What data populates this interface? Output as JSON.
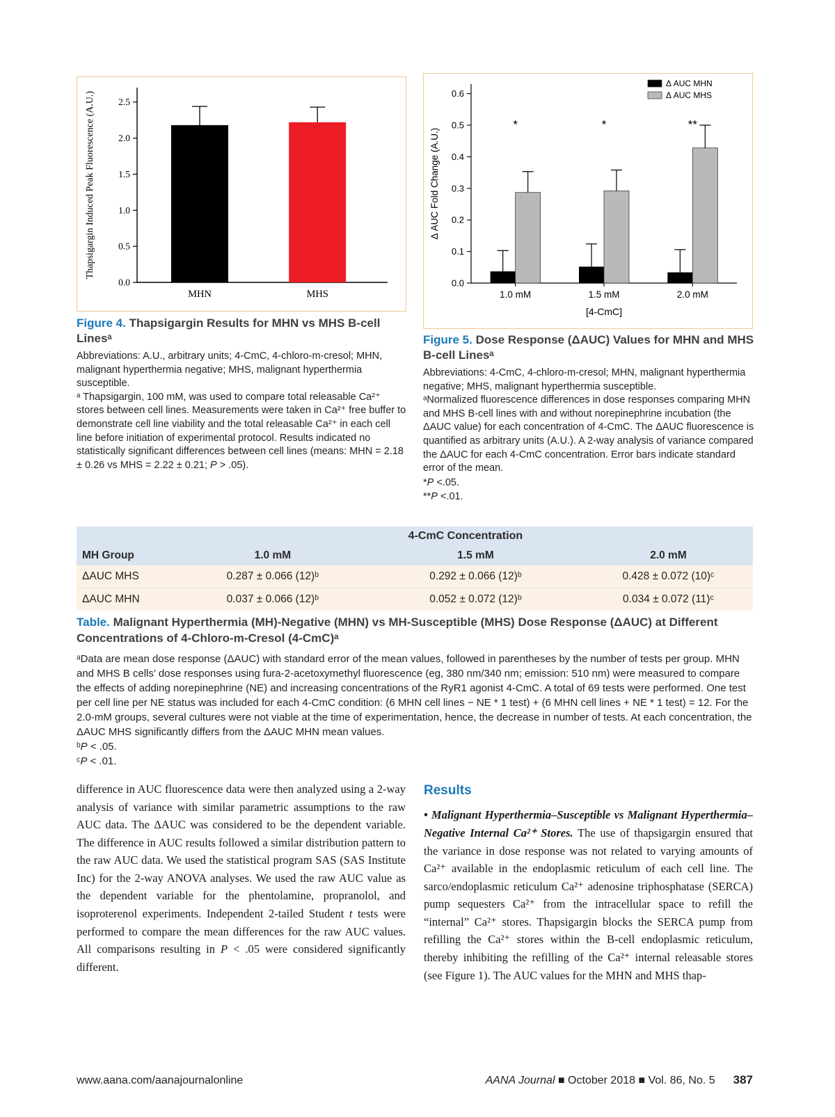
{
  "figure4": {
    "label": "Figure 4.",
    "title": "Thapsigargin Results for MHN vs MHS B-cell Linesᵃ",
    "abbreviations": "Abbreviations: A.U., arbitrary units; 4-CmC, 4-chloro-m-cresol; MHN, malignant hyperthermia negative; MHS, malignant hyperthermia susceptible.",
    "footnote": [
      {
        "x": "ᵃ Thapsigargin, 100 mM, was used to compare total releasable Ca²⁺ stores between cell lines. Measurements were taken in Ca²⁺ free buffer to demonstrate cell line viability and the total releasable Ca²⁺ in each cell line before initiation of experimental protocol. Results indicated no statistically significant differences between cell lines (means: MHN = 2.18 ± 0.26 vs MHS = 2.22 ± 0.21; "
      },
      {
        "s": "i",
        "x": "P"
      },
      {
        "x": " > .05)."
      }
    ]
  },
  "figure5": {
    "label": "Figure 5.",
    "title": "Dose Response (ΔAUC) Values for MHN and MHS B-cell Linesᵃ",
    "abbreviations": "Abbreviations: 4-CmC, 4-chloro-m-cresol; MHN, malignant hyperthermia negative; MHS, malignant hyperthermia susceptible.",
    "footnote": "ᵃNormalized fluorescence differences in dose responses comparing MHN and MHS B-cell lines with and without norepinephrine incubation (the ΔAUC value) for each concentration of 4-CmC. The ΔAUC fluorescence is quantified as arbitrary units (A.U.). A 2-way analysis of variance compared the ΔAUC for each 4-CmC concentration. Error bars indicate standard error of the mean.",
    "pnote1": [
      {
        "x": "*"
      },
      {
        "s": "i",
        "x": "P"
      },
      {
        "x": " <.05."
      }
    ],
    "pnote2": [
      {
        "x": "**"
      },
      {
        "s": "i",
        "x": "P"
      },
      {
        "x": " <.01."
      }
    ]
  },
  "table": {
    "span_header": "4-CmC Concentration",
    "columns": [
      "MH Group",
      "1.0 mM",
      "1.5 mM",
      "2.0 mM"
    ],
    "rows": [
      {
        "label": "ΔAUC MHS",
        "values": [
          "0.287 ± 0.066 (12)ᵇ",
          "0.292 ± 0.066 (12)ᵇ",
          "0.428 ± 0.072 (10)ᶜ"
        ]
      },
      {
        "label": "ΔAUC MHN",
        "values": [
          "0.037 ± 0.066 (12)ᵇ",
          "0.052 ± 0.072 (12)ᵇ",
          "0.034 ± 0.072 (11)ᶜ"
        ]
      }
    ],
    "caption_label": "Table.",
    "caption_title": "Malignant Hyperthermia (MH)-Negative (MHN) vs MH-Susceptible (MHS) Dose Response (ΔAUC) at Different Concentrations of 4-Chloro-m-Cresol (4-CmC)ᵃ",
    "footnote_a": "ᵃData are mean dose response (ΔAUC) with standard error of the mean values, followed in parentheses by the number of tests per group. MHN and MHS B cells’ dose responses using fura-2-acetoxymethyl fluorescence (eg, 380 nm/340 nm; emission: 510 nm) were measured to compare the effects of adding norepinephrine (NE) and increasing concentrations of the RyR1 agonist 4-CmC. A total of 69 tests were performed. One test per cell line per NE status was included for each 4-CmC condition: (6 MHN cell lines − NE * 1 test) + (6 MHN cell lines + NE * 1 test) = 12. For the 2.0-mM groups, several cultures were not viable at the time of experimentation, hence, the decrease in number of tests. At each concentration, the ΔAUC MHS significantly differs from the ΔAUC MHN mean values.",
    "footnote_b": [
      {
        "x": "ᵇ"
      },
      {
        "s": "i",
        "x": "P"
      },
      {
        "x": " < .05."
      }
    ],
    "footnote_c": [
      {
        "x": "ᶜ"
      },
      {
        "s": "i",
        "x": "P"
      },
      {
        "x": " < .01."
      }
    ]
  },
  "body": {
    "left_paragraph": [
      {
        "x": "difference in AUC fluorescence data were then analyzed using a 2-way analysis of variance with similar parametric assumptions to the raw AUC data. The ΔAUC was considered to be the dependent variable. The difference in AUC results followed a similar distribution pattern to the raw AUC data. We used the statistical program SAS (SAS Institute Inc) for the 2-way ANOVA analyses. We used the raw AUC value as the dependent variable for the phentolamine, propranolol, and isoproterenol experiments. Independent 2-tailed Student "
      },
      {
        "s": "i",
        "x": "t"
      },
      {
        "x": " tests were performed to compare the mean differences for the raw AUC values. All comparisons resulting in "
      },
      {
        "s": "i",
        "x": "P"
      },
      {
        "x": " < .05 were considered significantly different."
      }
    ],
    "results_heading": "Results",
    "results_paragraph": [
      {
        "s": "bi",
        "x": "• Malignant Hyperthermia–Susceptible vs Malignant Hyperthermia–Negative Internal Ca²⁺ Stores."
      },
      {
        "x": " The use of thapsigargin ensured that the variance in dose response was not related to varying amounts of Ca²⁺ available in the endoplasmic reticulum of each cell line. The sarco/endoplasmic reticulum Ca²⁺ adenosine triphosphatase (SERCA) pump sequesters Ca²⁺ from the intracellular space to refill the “internal” Ca²⁺ stores. Thapsigargin blocks the SERCA pump from refilling the Ca²⁺ stores within the B-cell endoplasmic reticulum, thereby inhibiting the refilling of the Ca²⁺ internal releasable stores (see Figure 1). The AUC values for the MHN and MHS thap-"
      }
    ]
  },
  "footer": {
    "site": "www.aana.com/aanajournalonline",
    "journal_info": [
      {
        "s": "i",
        "x": "AANA Journal"
      },
      {
        "x": " ■ October 2018 ■ Vol. 86, No. 5"
      }
    ],
    "page_number": "387"
  },
  "chart_data": [
    {
      "id": "figure4",
      "type": "bar",
      "title": "",
      "ylabel": "Thapsigargin Induced Peak Fluorescence (A.U.)",
      "xlabel": "",
      "categories": [
        "MHN",
        "MHS"
      ],
      "values": [
        2.18,
        2.22
      ],
      "errors": [
        0.26,
        0.21
      ],
      "bar_colors": [
        "#000000",
        "#ed1c24"
      ],
      "ylim": [
        0,
        2.7
      ],
      "yticks": [
        0.0,
        0.5,
        1.0,
        1.5,
        2.0,
        2.5
      ],
      "grid": false
    },
    {
      "id": "figure5",
      "type": "grouped_bar",
      "title": "",
      "ylabel": "Δ AUC  Fold Change (A.U.)",
      "xlabel": "[4-CmC]",
      "categories": [
        "1.0 mM",
        "1.5 mM",
        "2.0 mM"
      ],
      "series": [
        {
          "name": "Δ AUC MHN",
          "color": "#000000",
          "values": [
            0.037,
            0.052,
            0.034
          ],
          "errors": [
            0.066,
            0.072,
            0.072
          ]
        },
        {
          "name": "Δ AUC MHS",
          "color": "#b9b9b9",
          "values": [
            0.287,
            0.292,
            0.428
          ],
          "errors": [
            0.066,
            0.066,
            0.072
          ]
        }
      ],
      "significance": [
        "*",
        "*",
        "**"
      ],
      "ylim": [
        0,
        0.63
      ],
      "yticks": [
        0.0,
        0.1,
        0.2,
        0.3,
        0.4,
        0.5,
        0.6
      ],
      "legend_position": "top-right",
      "grid": false
    }
  ]
}
